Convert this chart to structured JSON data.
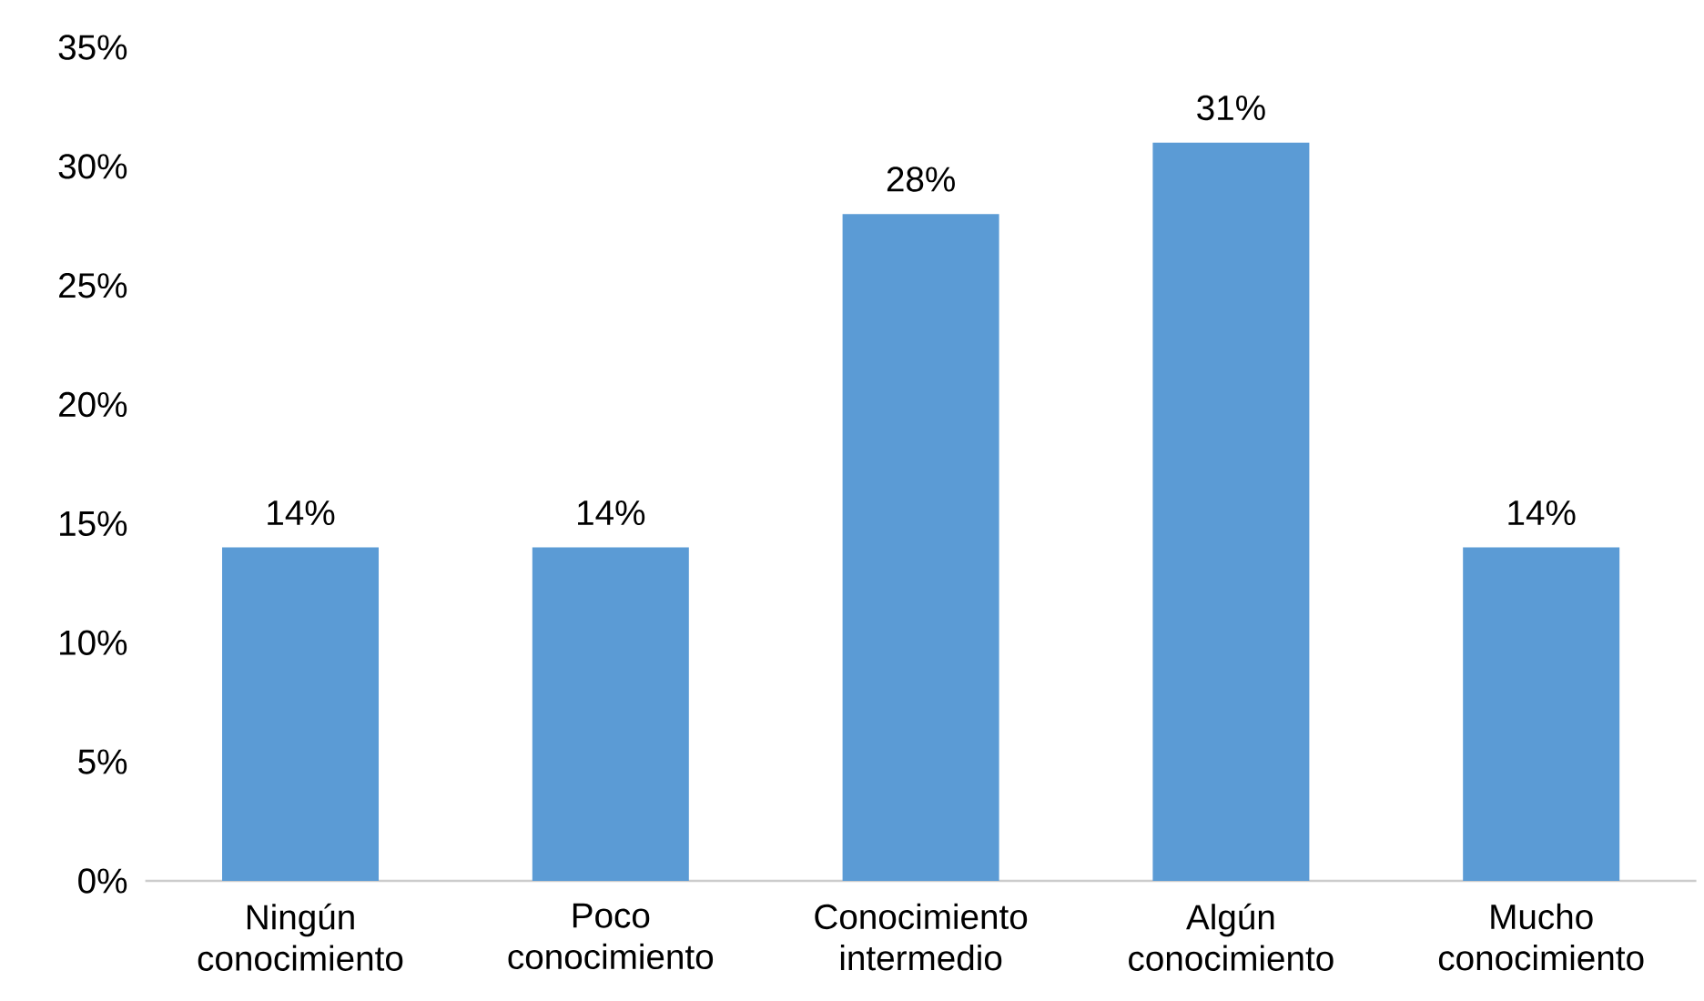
{
  "chart_data": {
    "type": "bar",
    "categories": [
      "Ningún conocimiento",
      "Poco conocimiento",
      "Conocimiento intermedio",
      "Algún conocimiento",
      "Mucho conocimiento"
    ],
    "values": [
      14,
      14,
      28,
      31,
      14
    ],
    "value_labels": [
      "14%",
      "14%",
      "28%",
      "31%",
      "14%"
    ],
    "color": "#5b9bd5",
    "ylim": [
      0,
      35
    ],
    "yticks": [
      {
        "value": 0,
        "label": "0%"
      },
      {
        "value": 5,
        "label": "5%"
      },
      {
        "value": 10,
        "label": "10%"
      },
      {
        "value": 15,
        "label": "15%"
      },
      {
        "value": 20,
        "label": "20%"
      },
      {
        "value": 25,
        "label": "25%"
      },
      {
        "value": 30,
        "label": "30%"
      },
      {
        "value": 35,
        "label": "35%"
      }
    ]
  }
}
